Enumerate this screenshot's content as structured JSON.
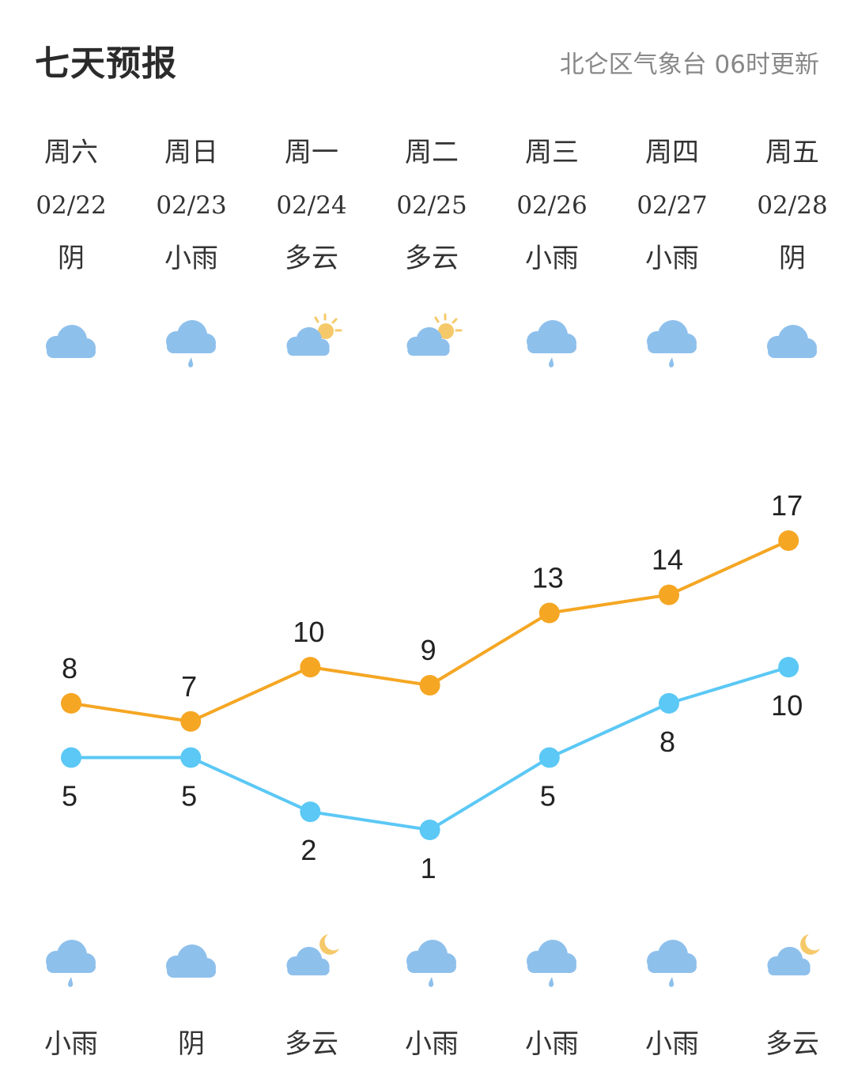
{
  "header": {
    "title": "七天预报",
    "source": "北仑区气象台  06时更新"
  },
  "days": [
    {
      "weekday": "周六",
      "date": "02/22",
      "day_cond": "阴",
      "day_icon": "cloudy-icon",
      "night_cond": "小雨",
      "night_icon": "light-rain-icon"
    },
    {
      "weekday": "周日",
      "date": "02/23",
      "day_cond": "小雨",
      "day_icon": "light-rain-icon",
      "night_cond": "阴",
      "night_icon": "cloudy-icon"
    },
    {
      "weekday": "周一",
      "date": "02/24",
      "day_cond": "多云",
      "day_icon": "partly-cloudy-sun-icon",
      "night_cond": "多云",
      "night_icon": "partly-cloudy-moon-icon"
    },
    {
      "weekday": "周二",
      "date": "02/25",
      "day_cond": "多云",
      "day_icon": "partly-cloudy-sun-icon",
      "night_cond": "小雨",
      "night_icon": "light-rain-icon"
    },
    {
      "weekday": "周三",
      "date": "02/26",
      "day_cond": "小雨",
      "day_icon": "light-rain-icon",
      "night_cond": "小雨",
      "night_icon": "light-rain-icon"
    },
    {
      "weekday": "周四",
      "date": "02/27",
      "day_cond": "小雨",
      "day_icon": "light-rain-icon",
      "night_cond": "小雨",
      "night_icon": "light-rain-icon"
    },
    {
      "weekday": "周五",
      "date": "02/28",
      "day_cond": "阴",
      "day_icon": "cloudy-icon",
      "night_cond": "多云",
      "night_icon": "partly-cloudy-moon-icon"
    }
  ],
  "chart_data": {
    "type": "line",
    "categories": [
      "02/22",
      "02/23",
      "02/24",
      "02/25",
      "02/26",
      "02/27",
      "02/28"
    ],
    "series": [
      {
        "values": [
          8,
          7,
          10,
          9,
          13,
          14,
          17
        ],
        "color": "#F5A623"
      },
      {
        "values": [
          5,
          5,
          2,
          1,
          5,
          8,
          10
        ],
        "color": "#5BC8F5"
      }
    ],
    "ylim": [
      1,
      17
    ],
    "grid": false,
    "xlabel": "",
    "ylabel": ""
  },
  "colors": {
    "high": "#F5A623",
    "low": "#5BC8F5",
    "cloud": "#8EC0EC",
    "sun": "#F5C96A"
  }
}
